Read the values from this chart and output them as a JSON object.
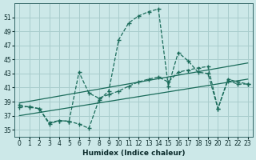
{
  "xlabel": "Humidex (Indice chaleur)",
  "bg_color": "#cce8e8",
  "grid_color": "#a8cccc",
  "line_color": "#1a6b5a",
  "xlim": [
    -0.5,
    23.5
  ],
  "ylim": [
    34,
    53
  ],
  "yticks": [
    35,
    37,
    39,
    41,
    43,
    45,
    47,
    49,
    51
  ],
  "xticks": [
    0,
    1,
    2,
    3,
    4,
    5,
    6,
    7,
    8,
    9,
    10,
    11,
    12,
    13,
    14,
    15,
    16,
    17,
    18,
    19,
    20,
    21,
    22,
    23
  ],
  "line1_x": [
    0,
    1,
    2,
    3,
    4,
    5,
    6,
    7,
    8,
    9,
    10,
    11,
    12,
    13,
    14,
    15,
    16,
    17,
    18,
    19,
    20,
    21,
    22,
    23
  ],
  "line1_y": [
    38.2,
    38.3,
    38.0,
    35.8,
    36.3,
    36.2,
    35.8,
    35.2,
    39.2,
    40.5,
    47.8,
    50.2,
    51.2,
    51.8,
    52.2,
    41.2,
    46.0,
    44.8,
    43.2,
    43.0,
    38.0,
    42.2,
    41.8,
    41.5
  ],
  "line2_x": [
    0,
    1,
    2,
    3,
    4,
    5,
    6,
    7,
    8,
    9,
    10,
    11,
    12,
    13,
    14,
    15,
    16,
    17,
    18,
    19,
    20,
    21,
    22,
    23
  ],
  "line2_y": [
    38.5,
    38.2,
    38.0,
    36.0,
    36.3,
    36.2,
    43.2,
    40.2,
    39.5,
    40.0,
    40.5,
    41.2,
    41.8,
    42.2,
    42.5,
    41.8,
    43.2,
    43.5,
    43.8,
    44.0,
    38.0,
    42.0,
    41.5,
    41.5
  ],
  "line3_x": [
    0,
    23
  ],
  "line3_y": [
    38.8,
    44.5
  ],
  "line4_x": [
    0,
    23
  ],
  "line4_y": [
    37.0,
    42.2
  ]
}
